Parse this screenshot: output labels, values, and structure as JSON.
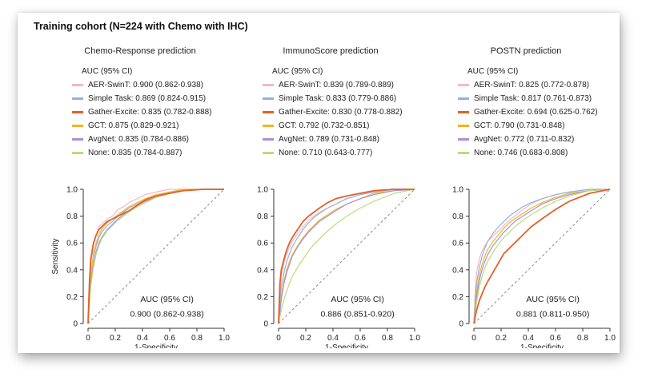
{
  "title": "Training cohort (N=224 with Chemo with IHC)",
  "colors": {
    "AER-SwinT": "#f7b6c6",
    "Simple Task": "#8fb3dd",
    "Gather-Excite": "#e2602a",
    "GCT": "#f0b524",
    "AvgNet": "#a790dd",
    "None": "#b8dd7a"
  },
  "chart_data": [
    {
      "type": "line",
      "title": "Chemo-Response prediction",
      "legend_title": "AUC (95% CI)",
      "xlabel": "1-Specificity",
      "ylabel": "Sensitivity",
      "xlim": [
        0,
        1
      ],
      "ylim": [
        0,
        1
      ],
      "xticks": [
        "0",
        "0.2",
        "0.4",
        "0.6",
        "0.8",
        "1.0"
      ],
      "yticks": [
        "0",
        "0.2",
        "0.4",
        "0.6",
        "0.8",
        "1.0"
      ],
      "inset": {
        "label": "AUC (95% CI)",
        "value": "0.900 (0.862-0.938)"
      },
      "series": [
        {
          "name": "AER-SwinT",
          "legend": "AER-SwinT: 0.900 (0.862-0.938)",
          "x": [
            0,
            0.01,
            0.02,
            0.04,
            0.06,
            0.08,
            0.1,
            0.14,
            0.18,
            0.22,
            0.26,
            0.3,
            0.36,
            0.42,
            0.5,
            0.6,
            0.7,
            0.85,
            1.0
          ],
          "y": [
            0,
            0.28,
            0.45,
            0.58,
            0.66,
            0.72,
            0.74,
            0.78,
            0.8,
            0.85,
            0.87,
            0.9,
            0.93,
            0.96,
            0.98,
            1.0,
            1.0,
            1.0,
            1.0
          ]
        },
        {
          "name": "Simple Task",
          "legend": "Simple Task: 0.869 (0.824-0.915)",
          "x": [
            0,
            0.01,
            0.02,
            0.04,
            0.06,
            0.08,
            0.1,
            0.14,
            0.18,
            0.22,
            0.26,
            0.3,
            0.36,
            0.42,
            0.5,
            0.6,
            0.7,
            0.85,
            1.0
          ],
          "y": [
            0,
            0.22,
            0.38,
            0.5,
            0.58,
            0.64,
            0.68,
            0.73,
            0.76,
            0.8,
            0.83,
            0.86,
            0.89,
            0.92,
            0.95,
            0.98,
            0.99,
            1.0,
            1.0
          ]
        },
        {
          "name": "Gather-Excite",
          "legend": "Gather-Excite: 0.835 (0.782-0.888)",
          "x": [
            0,
            0.01,
            0.02,
            0.04,
            0.06,
            0.08,
            0.1,
            0.14,
            0.18,
            0.22,
            0.26,
            0.3,
            0.36,
            0.42,
            0.5,
            0.6,
            0.7,
            0.85,
            1.0
          ],
          "y": [
            0,
            0.3,
            0.48,
            0.6,
            0.66,
            0.7,
            0.72,
            0.76,
            0.78,
            0.8,
            0.82,
            0.84,
            0.88,
            0.92,
            0.95,
            0.97,
            0.99,
            1.0,
            1.0
          ]
        },
        {
          "name": "GCT",
          "legend": "GCT: 0.875 (0.829-0.921)",
          "x": [
            0,
            0.01,
            0.02,
            0.04,
            0.06,
            0.08,
            0.1,
            0.14,
            0.18,
            0.22,
            0.26,
            0.3,
            0.36,
            0.42,
            0.5,
            0.6,
            0.7,
            0.85,
            1.0
          ],
          "y": [
            0,
            0.2,
            0.35,
            0.52,
            0.6,
            0.66,
            0.7,
            0.75,
            0.78,
            0.81,
            0.84,
            0.87,
            0.9,
            0.93,
            0.96,
            0.98,
            1.0,
            1.0,
            1.0
          ]
        },
        {
          "name": "AvgNet",
          "legend": "AvgNet: 0.835 (0.784-0.886)",
          "x": [
            0,
            0.01,
            0.02,
            0.04,
            0.06,
            0.08,
            0.1,
            0.14,
            0.18,
            0.22,
            0.26,
            0.3,
            0.36,
            0.42,
            0.5,
            0.6,
            0.7,
            0.85,
            1.0
          ],
          "y": [
            0,
            0.15,
            0.3,
            0.45,
            0.54,
            0.6,
            0.64,
            0.7,
            0.74,
            0.78,
            0.81,
            0.84,
            0.88,
            0.91,
            0.94,
            0.97,
            0.99,
            1.0,
            1.0
          ]
        },
        {
          "name": "None",
          "legend": "None: 0.835 (0.784-0.887)",
          "x": [
            0,
            0.01,
            0.02,
            0.04,
            0.06,
            0.08,
            0.1,
            0.14,
            0.18,
            0.22,
            0.26,
            0.3,
            0.36,
            0.42,
            0.5,
            0.6,
            0.7,
            0.85,
            1.0
          ],
          "y": [
            0,
            0.12,
            0.28,
            0.42,
            0.52,
            0.58,
            0.63,
            0.69,
            0.73,
            0.77,
            0.8,
            0.83,
            0.87,
            0.9,
            0.94,
            0.97,
            0.99,
            1.0,
            1.0
          ]
        }
      ]
    },
    {
      "type": "line",
      "title": "ImmunoScore prediction",
      "legend_title": "AUC (95% CI)",
      "xlabel": "1-Specificity",
      "ylabel": "",
      "xlim": [
        0,
        1
      ],
      "ylim": [
        0,
        1
      ],
      "xticks": [
        "0",
        "0.2",
        "0.4",
        "0.6",
        "0.8",
        "1.0"
      ],
      "yticks": [
        "0",
        "0.2",
        "0.4",
        "0.6",
        "0.8",
        "1.0"
      ],
      "inset": {
        "label": "AUC (95% CI)",
        "value": "0.886 (0.851-0.920)"
      },
      "series": [
        {
          "name": "AER-SwinT",
          "legend": "AER-SwinT: 0.839 (0.789-0.889)",
          "x": [
            0,
            0.01,
            0.02,
            0.04,
            0.06,
            0.08,
            0.1,
            0.14,
            0.18,
            0.22,
            0.26,
            0.3,
            0.36,
            0.42,
            0.5,
            0.6,
            0.7,
            0.85,
            1.0
          ],
          "y": [
            0,
            0.2,
            0.35,
            0.45,
            0.52,
            0.57,
            0.61,
            0.67,
            0.72,
            0.77,
            0.8,
            0.83,
            0.86,
            0.89,
            0.93,
            0.96,
            0.98,
            1.0,
            1.0
          ]
        },
        {
          "name": "Simple Task",
          "legend": "Simple Task: 0.833 (0.779-0.886)",
          "x": [
            0,
            0.01,
            0.02,
            0.04,
            0.06,
            0.08,
            0.1,
            0.14,
            0.18,
            0.22,
            0.26,
            0.3,
            0.36,
            0.42,
            0.5,
            0.6,
            0.7,
            0.85,
            1.0
          ],
          "y": [
            0,
            0.15,
            0.27,
            0.38,
            0.46,
            0.52,
            0.57,
            0.64,
            0.7,
            0.75,
            0.79,
            0.82,
            0.86,
            0.89,
            0.93,
            0.96,
            0.98,
            1.0,
            1.0
          ]
        },
        {
          "name": "Gather-Excite",
          "legend": "Gather-Excite: 0.830 (0.778-0.882)",
          "x": [
            0,
            0.01,
            0.02,
            0.04,
            0.06,
            0.08,
            0.1,
            0.14,
            0.18,
            0.22,
            0.26,
            0.3,
            0.36,
            0.42,
            0.5,
            0.6,
            0.7,
            0.85,
            1.0
          ],
          "y": [
            0,
            0.3,
            0.4,
            0.48,
            0.55,
            0.6,
            0.64,
            0.7,
            0.76,
            0.8,
            0.83,
            0.86,
            0.9,
            0.93,
            0.95,
            0.97,
            0.99,
            1.0,
            1.0
          ]
        },
        {
          "name": "GCT",
          "legend": "GCT: 0.792 (0.732-0.851)",
          "x": [
            0,
            0.01,
            0.02,
            0.04,
            0.06,
            0.08,
            0.1,
            0.14,
            0.18,
            0.22,
            0.26,
            0.3,
            0.36,
            0.42,
            0.5,
            0.6,
            0.7,
            0.85,
            1.0
          ],
          "y": [
            0,
            0.1,
            0.2,
            0.32,
            0.4,
            0.46,
            0.51,
            0.58,
            0.64,
            0.69,
            0.73,
            0.77,
            0.81,
            0.85,
            0.89,
            0.93,
            0.97,
            0.99,
            1.0
          ]
        },
        {
          "name": "AvgNet",
          "legend": "AvgNet: 0.789 (0.731-0.848)",
          "x": [
            0,
            0.01,
            0.02,
            0.04,
            0.06,
            0.08,
            0.1,
            0.14,
            0.18,
            0.22,
            0.26,
            0.3,
            0.36,
            0.42,
            0.5,
            0.6,
            0.7,
            0.85,
            1.0
          ],
          "y": [
            0,
            0.08,
            0.18,
            0.3,
            0.38,
            0.44,
            0.5,
            0.57,
            0.63,
            0.68,
            0.72,
            0.76,
            0.8,
            0.84,
            0.89,
            0.93,
            0.96,
            0.99,
            1.0
          ]
        },
        {
          "name": "None",
          "legend": "None: 0.710 (0.643-0.777)",
          "x": [
            0,
            0.01,
            0.02,
            0.04,
            0.06,
            0.08,
            0.1,
            0.14,
            0.18,
            0.22,
            0.26,
            0.3,
            0.36,
            0.42,
            0.5,
            0.6,
            0.7,
            0.85,
            1.0
          ],
          "y": [
            0,
            0.05,
            0.1,
            0.18,
            0.24,
            0.3,
            0.35,
            0.42,
            0.48,
            0.54,
            0.59,
            0.63,
            0.69,
            0.74,
            0.8,
            0.86,
            0.91,
            0.97,
            1.0
          ]
        }
      ]
    },
    {
      "type": "line",
      "title": "POSTN prediction",
      "legend_title": "AUC (95% CI)",
      "xlabel": "1-Specificity",
      "ylabel": "",
      "xlim": [
        0,
        1
      ],
      "ylim": [
        0,
        1
      ],
      "xticks": [
        "0",
        "0.2",
        "0.4",
        "0.6",
        "0.8",
        "1.0"
      ],
      "yticks": [
        "0",
        "0.2",
        "0.4",
        "0.6",
        "0.8",
        "1.0"
      ],
      "inset": {
        "label": "AUC (95% CI)",
        "value": "0.881 (0.811-0.950)"
      },
      "series": [
        {
          "name": "AER-SwinT",
          "legend": "AER-SwinT: 0.825 (0.772-0.878)",
          "x": [
            0,
            0.01,
            0.02,
            0.04,
            0.06,
            0.08,
            0.1,
            0.14,
            0.18,
            0.22,
            0.26,
            0.3,
            0.36,
            0.42,
            0.5,
            0.6,
            0.7,
            0.85,
            1.0
          ],
          "y": [
            0,
            0.25,
            0.38,
            0.48,
            0.54,
            0.58,
            0.61,
            0.65,
            0.69,
            0.73,
            0.77,
            0.8,
            0.85,
            0.89,
            0.93,
            0.96,
            0.98,
            1.0,
            1.0
          ]
        },
        {
          "name": "Simple Task",
          "legend": "Simple Task: 0.817 (0.761-0.873)",
          "x": [
            0,
            0.01,
            0.02,
            0.04,
            0.06,
            0.08,
            0.1,
            0.14,
            0.18,
            0.22,
            0.26,
            0.3,
            0.36,
            0.42,
            0.5,
            0.6,
            0.7,
            0.85,
            1.0
          ],
          "y": [
            0,
            0.18,
            0.3,
            0.42,
            0.5,
            0.56,
            0.61,
            0.67,
            0.72,
            0.76,
            0.8,
            0.83,
            0.87,
            0.9,
            0.93,
            0.96,
            0.98,
            1.0,
            1.0
          ]
        },
        {
          "name": "Gather-Excite",
          "legend": "Gather-Excite: 0.694 (0.625-0.762)",
          "x": [
            0,
            0.01,
            0.02,
            0.04,
            0.06,
            0.08,
            0.1,
            0.14,
            0.18,
            0.22,
            0.26,
            0.3,
            0.36,
            0.42,
            0.5,
            0.6,
            0.7,
            0.85,
            1.0
          ],
          "y": [
            0,
            0.05,
            0.1,
            0.17,
            0.22,
            0.27,
            0.31,
            0.38,
            0.45,
            0.52,
            0.56,
            0.6,
            0.66,
            0.72,
            0.78,
            0.85,
            0.91,
            0.97,
            1.0
          ]
        },
        {
          "name": "GCT",
          "legend": "GCT: 0.790 (0.731-0.848)",
          "x": [
            0,
            0.01,
            0.02,
            0.04,
            0.06,
            0.08,
            0.1,
            0.14,
            0.18,
            0.22,
            0.26,
            0.3,
            0.36,
            0.42,
            0.5,
            0.6,
            0.7,
            0.85,
            1.0
          ],
          "y": [
            0,
            0.12,
            0.24,
            0.36,
            0.44,
            0.5,
            0.55,
            0.61,
            0.66,
            0.71,
            0.75,
            0.78,
            0.82,
            0.86,
            0.9,
            0.94,
            0.97,
            0.99,
            1.0
          ]
        },
        {
          "name": "AvgNet",
          "legend": "AvgNet: 0.772 (0.711-0.832)",
          "x": [
            0,
            0.01,
            0.02,
            0.04,
            0.06,
            0.08,
            0.1,
            0.14,
            0.18,
            0.22,
            0.26,
            0.3,
            0.36,
            0.42,
            0.5,
            0.6,
            0.7,
            0.85,
            1.0
          ],
          "y": [
            0,
            0.1,
            0.2,
            0.32,
            0.4,
            0.46,
            0.51,
            0.58,
            0.63,
            0.68,
            0.72,
            0.76,
            0.8,
            0.84,
            0.89,
            0.93,
            0.96,
            0.99,
            1.0
          ]
        },
        {
          "name": "None",
          "legend": "None: 0.746 (0.683-0.808)",
          "x": [
            0,
            0.01,
            0.02,
            0.04,
            0.06,
            0.08,
            0.1,
            0.14,
            0.18,
            0.22,
            0.26,
            0.3,
            0.36,
            0.42,
            0.5,
            0.6,
            0.7,
            0.85,
            1.0
          ],
          "y": [
            0,
            0.08,
            0.16,
            0.27,
            0.35,
            0.41,
            0.46,
            0.53,
            0.59,
            0.64,
            0.68,
            0.72,
            0.77,
            0.81,
            0.86,
            0.91,
            0.95,
            0.99,
            1.0
          ]
        }
      ]
    }
  ]
}
